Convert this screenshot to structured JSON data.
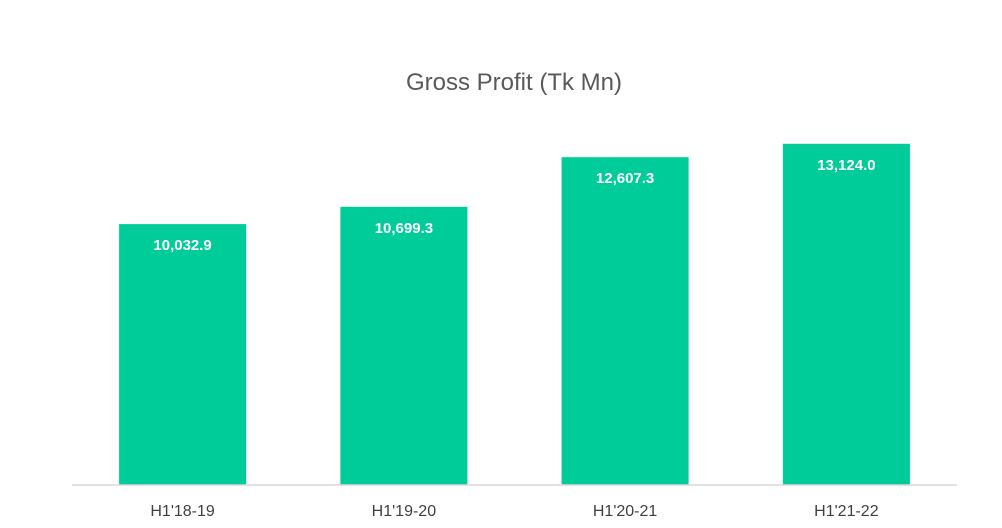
{
  "chart_data": {
    "type": "bar",
    "title": "Gross Profit (Tk Mn)",
    "xlabel": "",
    "ylabel": "",
    "categories": [
      "H1'18-19",
      "H1'19-20",
      "H1'20-21",
      "H1'21-22"
    ],
    "values": [
      10032.9,
      10699.3,
      12607.3,
      13124.0
    ],
    "value_labels": [
      "10,032.9",
      "10,699.3",
      "12,607.3",
      "13,124.0"
    ],
    "ylim": [
      0,
      15000
    ],
    "grid": false,
    "legend": "none",
    "colors": {
      "bar": "#00CC99",
      "axis": "#D9D9D9",
      "title": "#595959",
      "tick_label": "#404040",
      "data_label": "#FFFFFF"
    }
  }
}
